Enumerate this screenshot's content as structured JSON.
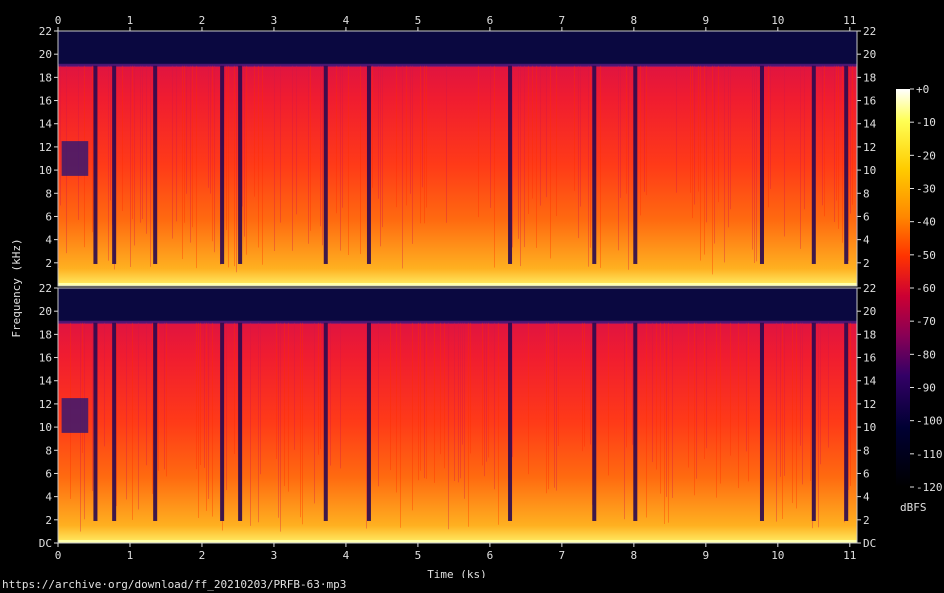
{
  "chart_data": {
    "type": "heatmap",
    "title": "",
    "xlabel": "Time (ks)",
    "ylabel": "Frequency (kHz)",
    "xlim": [
      0,
      11.1
    ],
    "ylim_khz": [
      0,
      22
    ],
    "x_ticks": [
      "0",
      "1",
      "2",
      "3",
      "4",
      "5",
      "6",
      "7",
      "8",
      "9",
      "10",
      "11"
    ],
    "y_ticks_upper": [
      "2",
      "4",
      "6",
      "8",
      "10",
      "12",
      "14",
      "16",
      "18",
      "20",
      "22"
    ],
    "y_ticks_lower": [
      "DC",
      "2",
      "4",
      "6",
      "8",
      "10",
      "12",
      "14",
      "16",
      "18",
      "20",
      "22"
    ],
    "channels": 2,
    "cutoff_khz": 19,
    "colorbar": {
      "label": "dBFS",
      "range": [
        -120,
        0
      ],
      "ticks": [
        "+0",
        "-10",
        "-20",
        "-30",
        "-40",
        "-50",
        "-60",
        "-70",
        "-80",
        "-90",
        "-100",
        "-110",
        "-120"
      ],
      "colors": [
        "#ffffff",
        "#ffff55",
        "#ffcc00",
        "#ff8800",
        "#ff3300",
        "#cc0033",
        "#880055",
        "#330066",
        "#000033",
        "#000000"
      ]
    },
    "quiet_segments_ks": [
      0.52,
      0.78,
      1.35,
      2.28,
      2.53,
      3.72,
      4.32,
      6.28,
      7.45,
      8.02,
      9.78,
      10.5,
      10.95
    ],
    "source": "https://archive·org/download/ff_20210203/PRFB-63·mp3"
  }
}
